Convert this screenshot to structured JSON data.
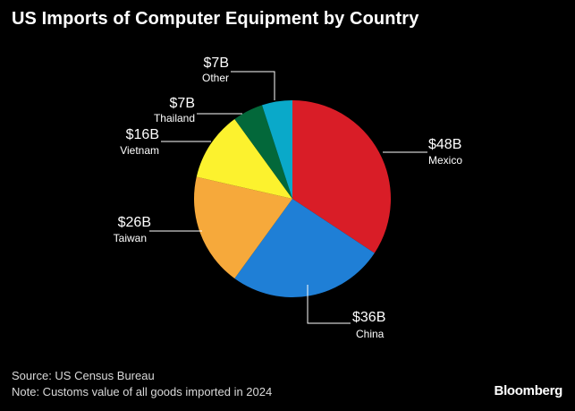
{
  "title": "US Imports of Computer Equipment by Country",
  "footer": {
    "source": "Source: US Census Bureau",
    "note": "Note: Customs value of all goods imported in 2024",
    "brand": "Bloomberg"
  },
  "chart_data": {
    "type": "pie",
    "title": "US Imports of Computer Equipment by Country",
    "slices": [
      {
        "label": "Mexico",
        "value": 48,
        "value_label": "$48B",
        "color": "#d91d27"
      },
      {
        "label": "China",
        "value": 36,
        "value_label": "$36B",
        "color": "#1f7fd6"
      },
      {
        "label": "Taiwan",
        "value": 26,
        "value_label": "$26B",
        "color": "#f6a93b"
      },
      {
        "label": "Vietnam",
        "value": 16,
        "value_label": "$16B",
        "color": "#fcf22e"
      },
      {
        "label": "Thailand",
        "value": 7,
        "value_label": "$7B",
        "color": "#03683a"
      },
      {
        "label": "Other",
        "value": 7,
        "value_label": "$7B",
        "color": "#0aa9c9"
      }
    ]
  }
}
